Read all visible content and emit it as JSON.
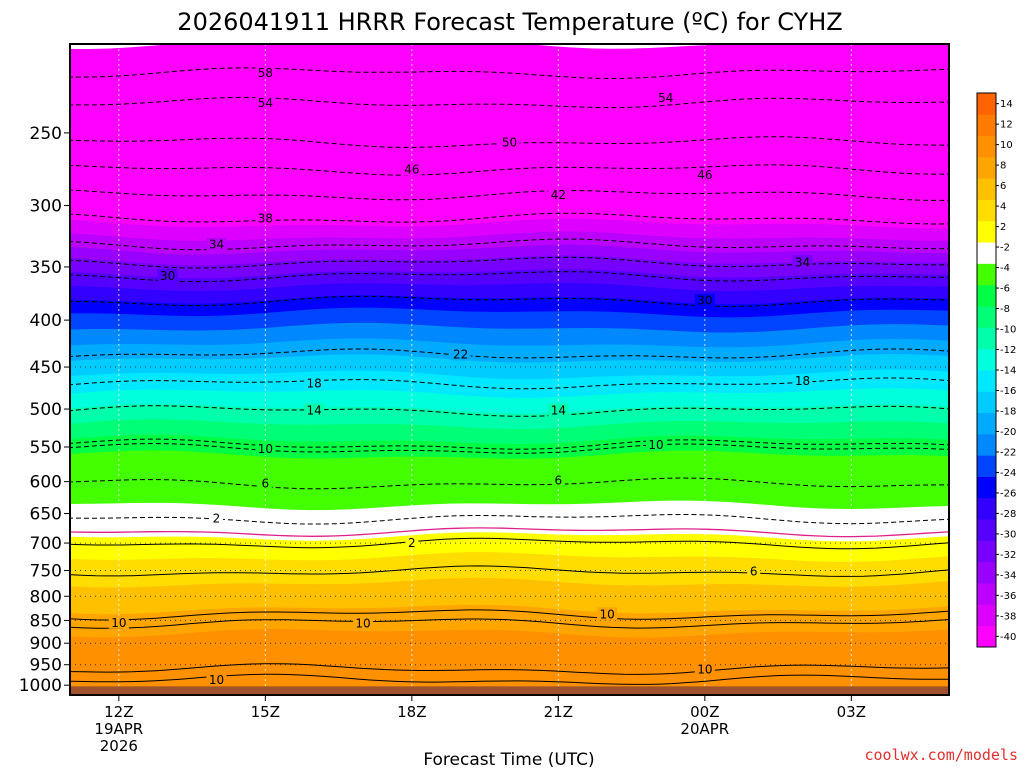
{
  "chart_data": {
    "type": "heatmap",
    "title": "2026041911 HRRR Forecast Temperature (ºC) for CYHZ",
    "xlabel": "Forecast Time (UTC)",
    "ylabel": "",
    "y_scale": "log-pressure",
    "y_range_hpa": [
      1025,
      200
    ],
    "x_range_hours": [
      -1,
      17
    ],
    "y_ticks": [
      {
        "p": 250,
        "label": "250"
      },
      {
        "p": 300,
        "label": "300"
      },
      {
        "p": 350,
        "label": "350"
      },
      {
        "p": 400,
        "label": "400"
      },
      {
        "p": 450,
        "label": "450"
      },
      {
        "p": 500,
        "label": "500"
      },
      {
        "p": 550,
        "label": "550"
      },
      {
        "p": 600,
        "label": "600"
      },
      {
        "p": 650,
        "label": "650"
      },
      {
        "p": 700,
        "label": "700"
      },
      {
        "p": 750,
        "label": "750"
      },
      {
        "p": 800,
        "label": "800"
      },
      {
        "p": 850,
        "label": "850"
      },
      {
        "p": 900,
        "label": "900"
      },
      {
        "p": 950,
        "label": "950"
      },
      {
        "p": 1000,
        "label": "1000"
      }
    ],
    "x_ticks": [
      {
        "hour": 0,
        "lines": [
          "12Z",
          "19APR",
          "2026"
        ]
      },
      {
        "hour": 3,
        "lines": [
          "15Z"
        ]
      },
      {
        "hour": 6,
        "lines": [
          "18Z"
        ]
      },
      {
        "hour": 9,
        "lines": [
          "21Z"
        ]
      },
      {
        "hour": 12,
        "lines": [
          "00Z",
          "20APR"
        ]
      },
      {
        "hour": 15,
        "lines": [
          "03Z"
        ]
      }
    ],
    "colorbar": {
      "colors": [
        "#ff00ff",
        "#dd00ff",
        "#bb00ff",
        "#9900ff",
        "#7700ff",
        "#5500ff",
        "#3300ff",
        "#0000ff",
        "#0044ff",
        "#0088ff",
        "#00aaff",
        "#00ccff",
        "#00e8ff",
        "#00ffdd",
        "#00ffaa",
        "#00ff77",
        "#00ff44",
        "#44ff00",
        "#ffffff",
        "#ffff00",
        "#ffdd00",
        "#ffc000",
        "#ffa500",
        "#ff9000",
        "#ff7c00",
        "#ff6400"
      ],
      "labels": [
        "-40",
        "-38",
        "-36",
        "-34",
        "-32",
        "-30",
        "-28",
        "-26",
        "-24",
        "-22",
        "-20",
        "-18",
        "-16",
        "-14",
        "-12",
        "-10",
        "-8",
        "-6",
        "-4",
        "-2",
        "2",
        "4",
        "6",
        "8",
        "10",
        "12",
        "14"
      ]
    },
    "levels_hpa": [
      200,
      250,
      300,
      350,
      400,
      450,
      500,
      550,
      600,
      650,
      700,
      750,
      800,
      850,
      900,
      950,
      1000,
      1025
    ],
    "temperature_profile_c": [
      -60,
      -52,
      -43,
      -33,
      -25,
      -19,
      -14,
      -9,
      -5,
      -1,
      3,
      5,
      7,
      9,
      11,
      10,
      10,
      10
    ],
    "contour_labels": [
      {
        "text": "58",
        "hour": 3.0,
        "p": 215
      },
      {
        "text": "54",
        "hour": 3.0,
        "p": 232
      },
      {
        "text": "54",
        "hour": 11.2,
        "p": 229
      },
      {
        "text": "50",
        "hour": 8.0,
        "p": 256
      },
      {
        "text": "46",
        "hour": 6.0,
        "p": 274
      },
      {
        "text": "46",
        "hour": 12.0,
        "p": 278
      },
      {
        "text": "42",
        "hour": 9.0,
        "p": 292
      },
      {
        "text": "38",
        "hour": 3.0,
        "p": 310
      },
      {
        "text": "34",
        "hour": 2.0,
        "p": 331
      },
      {
        "text": "34",
        "hour": 14.0,
        "p": 346
      },
      {
        "text": "30",
        "hour": 1.0,
        "p": 358
      },
      {
        "text": "30",
        "hour": 12.0,
        "p": 381
      },
      {
        "text": "22",
        "hour": 7.0,
        "p": 436
      },
      {
        "text": "18",
        "hour": 4.0,
        "p": 469
      },
      {
        "text": "18",
        "hour": 14.0,
        "p": 466
      },
      {
        "text": "14",
        "hour": 4.0,
        "p": 502
      },
      {
        "text": "14",
        "hour": 9.0,
        "p": 502
      },
      {
        "text": "10",
        "hour": 3.0,
        "p": 553
      },
      {
        "text": "10",
        "hour": 11.0,
        "p": 547
      },
      {
        "text": "6",
        "hour": 3.0,
        "p": 603
      },
      {
        "text": "6",
        "hour": 9.0,
        "p": 598
      },
      {
        "text": "2",
        "hour": 2.0,
        "p": 658
      },
      {
        "text": "2",
        "hour": 6.0,
        "p": 700
      },
      {
        "text": "6",
        "hour": 13.0,
        "p": 752
      },
      {
        "text": "10",
        "hour": 0.0,
        "p": 855
      },
      {
        "text": "10",
        "hour": 5.0,
        "p": 857
      },
      {
        "text": "10",
        "hour": 10.0,
        "p": 837
      },
      {
        "text": "10",
        "hour": 12.0,
        "p": 961
      },
      {
        "text": "10",
        "hour": 2.0,
        "p": 987
      }
    ]
  },
  "footer": {
    "credit": "coolwx.com/models"
  }
}
